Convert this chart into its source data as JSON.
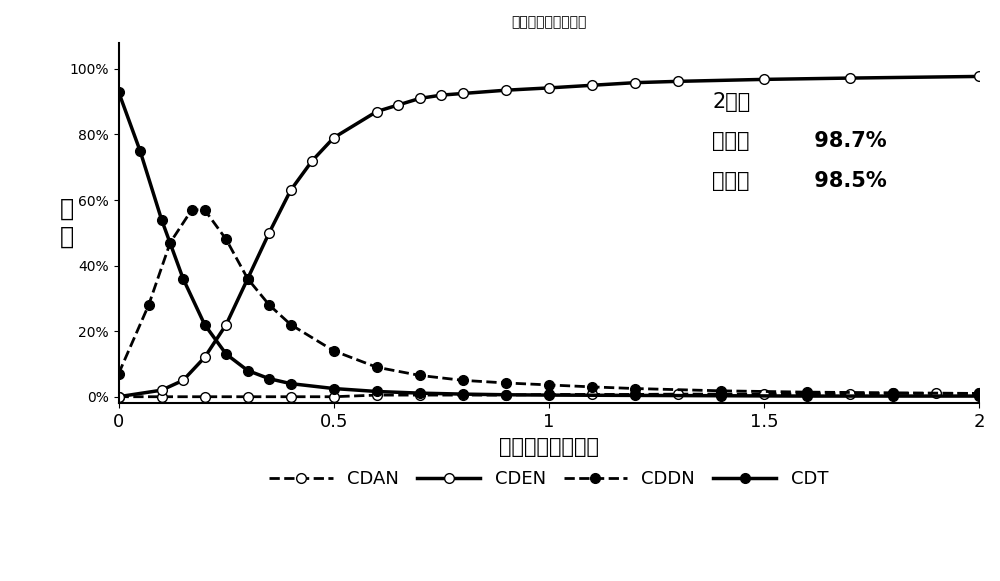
{
  "title": "原位合成催化剂反应",
  "xlabel": "反应时间（小时）",
  "ylabel": "含\n量",
  "annotation_time": "2小时",
  "annotation_conversion_label": "转化率",
  "annotation_conversion_value": " 98.7%",
  "annotation_selectivity_label": "选择性",
  "annotation_selectivity_value": " 98.5%",
  "xlim": [
    0,
    2
  ],
  "ylim": [
    -0.02,
    1.08
  ],
  "xticks": [
    0,
    0.5,
    1,
    1.5,
    2
  ],
  "yticks": [
    0,
    0.2,
    0.4,
    0.6,
    0.8,
    1.0
  ],
  "ytick_labels": [
    "0%",
    "20%",
    "40%",
    "60%",
    "80%",
    "100%"
  ],
  "CDAN": {
    "x": [
      0,
      0.1,
      0.2,
      0.3,
      0.4,
      0.5,
      0.6,
      0.7,
      0.8,
      0.9,
      1.0,
      1.1,
      1.2,
      1.3,
      1.4,
      1.5,
      1.6,
      1.7,
      1.8,
      1.9,
      2.0
    ],
    "y": [
      0.0,
      0.0,
      0.0,
      0.0,
      0.0,
      0.0,
      0.005,
      0.005,
      0.005,
      0.005,
      0.007,
      0.007,
      0.007,
      0.008,
      0.008,
      0.008,
      0.009,
      0.009,
      0.01,
      0.01,
      0.01
    ],
    "color": "#000000",
    "linestyle": "--",
    "marker": "o",
    "markerfacecolor": "white",
    "linewidth": 2.0,
    "markersize": 7,
    "label": "CDAN"
  },
  "CDEN": {
    "x": [
      0,
      0.1,
      0.15,
      0.2,
      0.25,
      0.3,
      0.35,
      0.4,
      0.45,
      0.5,
      0.6,
      0.65,
      0.7,
      0.75,
      0.8,
      0.9,
      1.0,
      1.1,
      1.2,
      1.3,
      1.5,
      1.7,
      2.0
    ],
    "y": [
      0.0,
      0.02,
      0.05,
      0.12,
      0.22,
      0.36,
      0.5,
      0.63,
      0.72,
      0.79,
      0.87,
      0.89,
      0.91,
      0.92,
      0.925,
      0.935,
      0.942,
      0.95,
      0.958,
      0.962,
      0.968,
      0.972,
      0.977
    ],
    "color": "#000000",
    "linestyle": "-",
    "marker": "o",
    "markerfacecolor": "white",
    "linewidth": 2.5,
    "markersize": 7,
    "label": "CDEN"
  },
  "CDDN": {
    "x": [
      0,
      0.07,
      0.12,
      0.17,
      0.2,
      0.25,
      0.3,
      0.35,
      0.4,
      0.5,
      0.6,
      0.7,
      0.8,
      0.9,
      1.0,
      1.1,
      1.2,
      1.4,
      1.6,
      1.8,
      2.0
    ],
    "y": [
      0.07,
      0.28,
      0.47,
      0.57,
      0.57,
      0.48,
      0.36,
      0.28,
      0.22,
      0.14,
      0.09,
      0.065,
      0.05,
      0.042,
      0.036,
      0.03,
      0.025,
      0.018,
      0.014,
      0.012,
      0.01
    ],
    "color": "#000000",
    "linestyle": "--",
    "marker": "o",
    "markerfacecolor": "#000000",
    "linewidth": 2.0,
    "markersize": 7,
    "label": "CDDN"
  },
  "CDT": {
    "x": [
      0,
      0.05,
      0.1,
      0.15,
      0.2,
      0.25,
      0.3,
      0.35,
      0.4,
      0.5,
      0.6,
      0.7,
      0.8,
      0.9,
      1.0,
      1.2,
      1.4,
      1.6,
      1.8,
      2.0
    ],
    "y": [
      0.93,
      0.75,
      0.54,
      0.36,
      0.22,
      0.13,
      0.08,
      0.055,
      0.04,
      0.025,
      0.016,
      0.011,
      0.008,
      0.006,
      0.005,
      0.004,
      0.003,
      0.002,
      0.002,
      0.002
    ],
    "color": "#000000",
    "linestyle": "-",
    "marker": "o",
    "markerfacecolor": "#000000",
    "linewidth": 2.5,
    "markersize": 7,
    "label": "CDT"
  },
  "background_color": "#ffffff",
  "title_fontsize": 20,
  "label_fontsize": 15,
  "tick_fontsize": 13,
  "legend_fontsize": 13,
  "annotation_fontsize": 15
}
